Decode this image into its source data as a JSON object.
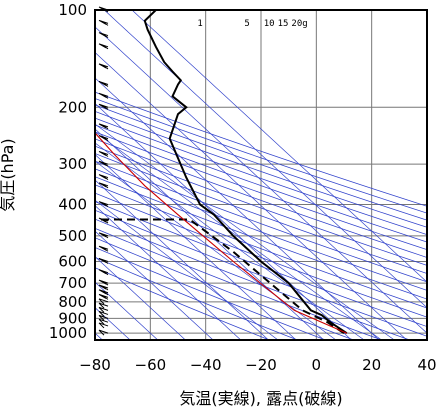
{
  "chart_data": {
    "type": "line",
    "title": "",
    "xlabel": "気温(実線), 露点(破線)",
    "ylabel": "気圧(hPa)",
    "xlim": [
      -80,
      40
    ],
    "ylim": [
      1050,
      100
    ],
    "y_scale": "log",
    "grid": true,
    "x_ticks": [
      -80,
      -60,
      -40,
      -20,
      0,
      20,
      40
    ],
    "y_ticks": [
      100,
      200,
      300,
      400,
      500,
      600,
      700,
      800,
      900,
      1000
    ],
    "mixing_ratio_labels": [
      "1",
      "5",
      "10",
      "15",
      "20g"
    ],
    "mixing_ratio_values": [
      1,
      5,
      10,
      15,
      20
    ],
    "series": [
      {
        "name": "",
        "style": "solid",
        "color": "#000000",
        "points": [
          [
            11,
            1000
          ],
          [
            5,
            925
          ],
          [
            2,
            880
          ],
          [
            -2,
            850
          ],
          [
            -10,
            700
          ],
          [
            -20,
            600
          ],
          [
            -30,
            500
          ],
          [
            -37,
            430
          ],
          [
            -42,
            400
          ],
          [
            -47,
            330
          ],
          [
            -53,
            250
          ],
          [
            -50,
            210
          ],
          [
            -47,
            200
          ],
          [
            -52,
            185
          ],
          [
            -50,
            170
          ],
          [
            -49,
            165
          ],
          [
            -52,
            155
          ],
          [
            -55,
            145
          ],
          [
            -58,
            130
          ],
          [
            -61,
            115
          ],
          [
            -62,
            108
          ],
          [
            -58,
            100
          ]
        ]
      },
      {
        "name": "",
        "style": "dashed",
        "color": "#000000",
        "points": [
          [
            10,
            1000
          ],
          [
            4,
            925
          ],
          [
            -5,
            850
          ],
          [
            -15,
            720
          ],
          [
            -30,
            560
          ],
          [
            -45,
            450
          ],
          [
            -46,
            445
          ],
          [
            -80,
            445
          ]
        ]
      },
      {
        "name": "",
        "style": "solid",
        "color": "#cc0000",
        "points": [
          [
            11,
            1000
          ],
          [
            -8,
            850
          ],
          [
            -30,
            600
          ],
          [
            -50,
            430
          ],
          [
            -62,
            350
          ],
          [
            -73,
            280
          ],
          [
            -80,
            240
          ]
        ]
      }
    ],
    "wind_barbs_pressures": [
      1000,
      950,
      925,
      900,
      875,
      850,
      825,
      800,
      775,
      750,
      725,
      700,
      650,
      600,
      550,
      500,
      450,
      400,
      350,
      330,
      300,
      280,
      250,
      230,
      200,
      185,
      170,
      150,
      130,
      120,
      110,
      100
    ]
  }
}
